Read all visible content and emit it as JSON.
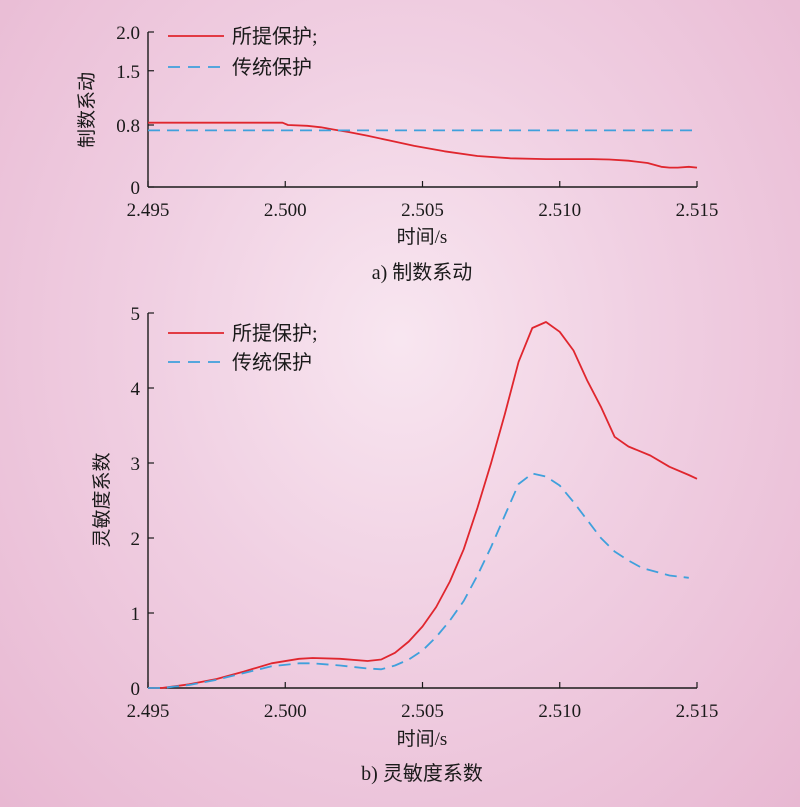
{
  "chart_data": [
    {
      "type": "line",
      "caption": "a) 制数系动",
      "xlabel": "时间/s",
      "ylabel": "制数系动",
      "xlim": [
        2.495,
        2.515
      ],
      "ylim": [
        0,
        2.0
      ],
      "xticks": [
        "2.495",
        "2.500",
        "2.505",
        "2.510",
        "2.515"
      ],
      "yticks": [
        "0",
        "0.8",
        "1.5",
        "2.0"
      ],
      "legend": {
        "position": "top-left"
      },
      "series": [
        {
          "name": "所提保护;",
          "color": "#e0262e",
          "dash": "solid",
          "x": [
            2.495,
            2.496,
            2.497,
            2.498,
            2.499,
            2.4999,
            2.5001,
            2.5008,
            2.5013,
            2.5018,
            2.5023,
            2.503,
            2.5038,
            2.5047,
            2.5058,
            2.507,
            2.5082,
            2.5095,
            2.5105,
            2.5112,
            2.5118,
            2.5125,
            2.5132,
            2.5137,
            2.514,
            2.5143,
            2.5147,
            2.515
          ],
          "y": [
            0.83,
            0.83,
            0.83,
            0.83,
            0.83,
            0.83,
            0.8,
            0.79,
            0.77,
            0.74,
            0.71,
            0.66,
            0.6,
            0.53,
            0.46,
            0.4,
            0.37,
            0.36,
            0.36,
            0.36,
            0.355,
            0.34,
            0.31,
            0.26,
            0.25,
            0.25,
            0.26,
            0.25
          ]
        },
        {
          "name": "传统保护",
          "color": "#3fa0dc",
          "dash": "dashed",
          "x": [
            2.495,
            2.515
          ],
          "y": [
            0.73,
            0.73
          ]
        }
      ]
    },
    {
      "type": "line",
      "caption": "b) 灵敏度系数",
      "xlabel": "时间/s",
      "ylabel": "灵敏度系数",
      "xlim": [
        2.495,
        2.515
      ],
      "ylim": [
        0,
        5
      ],
      "xticks": [
        "2.495",
        "2.500",
        "2.505",
        "2.510",
        "2.515"
      ],
      "yticks": [
        "0",
        "1",
        "2",
        "3",
        "4",
        "5"
      ],
      "legend": {
        "position": "top-left"
      },
      "series": [
        {
          "name": "所提保护;",
          "color": "#e0262e",
          "dash": "solid",
          "x": [
            2.495,
            2.4955,
            2.4965,
            2.4975,
            2.4985,
            2.4995,
            2.5005,
            2.501,
            2.502,
            2.503,
            2.5035,
            2.504,
            2.5045,
            2.505,
            2.5055,
            2.506,
            2.5065,
            2.507,
            2.5075,
            2.508,
            2.5085,
            2.509,
            2.5095,
            2.51,
            2.5105,
            2.511,
            2.5115,
            2.512,
            2.5125,
            2.5133,
            2.514,
            2.5147,
            2.515
          ],
          "y": [
            0.0,
            0.0,
            0.05,
            0.12,
            0.22,
            0.33,
            0.39,
            0.4,
            0.39,
            0.36,
            0.38,
            0.47,
            0.62,
            0.82,
            1.08,
            1.42,
            1.85,
            2.4,
            3.0,
            3.65,
            4.35,
            4.8,
            4.88,
            4.75,
            4.5,
            4.1,
            3.75,
            3.35,
            3.22,
            3.1,
            2.95,
            2.84,
            2.79
          ]
        },
        {
          "name": "传统保护",
          "color": "#3fa0dc",
          "dash": "dashed",
          "x": [
            2.495,
            2.4955,
            2.4965,
            2.4975,
            2.4985,
            2.4995,
            2.5005,
            2.501,
            2.502,
            2.503,
            2.5035,
            2.504,
            2.5045,
            2.505,
            2.5055,
            2.506,
            2.5065,
            2.507,
            2.5075,
            2.508,
            2.5085,
            2.509,
            2.5095,
            2.51,
            2.5105,
            2.511,
            2.5115,
            2.512,
            2.5125,
            2.513,
            2.514,
            2.5147
          ],
          "y": [
            0.0,
            0.0,
            0.04,
            0.11,
            0.2,
            0.29,
            0.33,
            0.33,
            0.3,
            0.26,
            0.25,
            0.3,
            0.38,
            0.5,
            0.68,
            0.9,
            1.16,
            1.5,
            1.88,
            2.3,
            2.72,
            2.86,
            2.82,
            2.7,
            2.48,
            2.24,
            2.0,
            1.82,
            1.7,
            1.6,
            1.5,
            1.47
          ]
        }
      ]
    }
  ]
}
